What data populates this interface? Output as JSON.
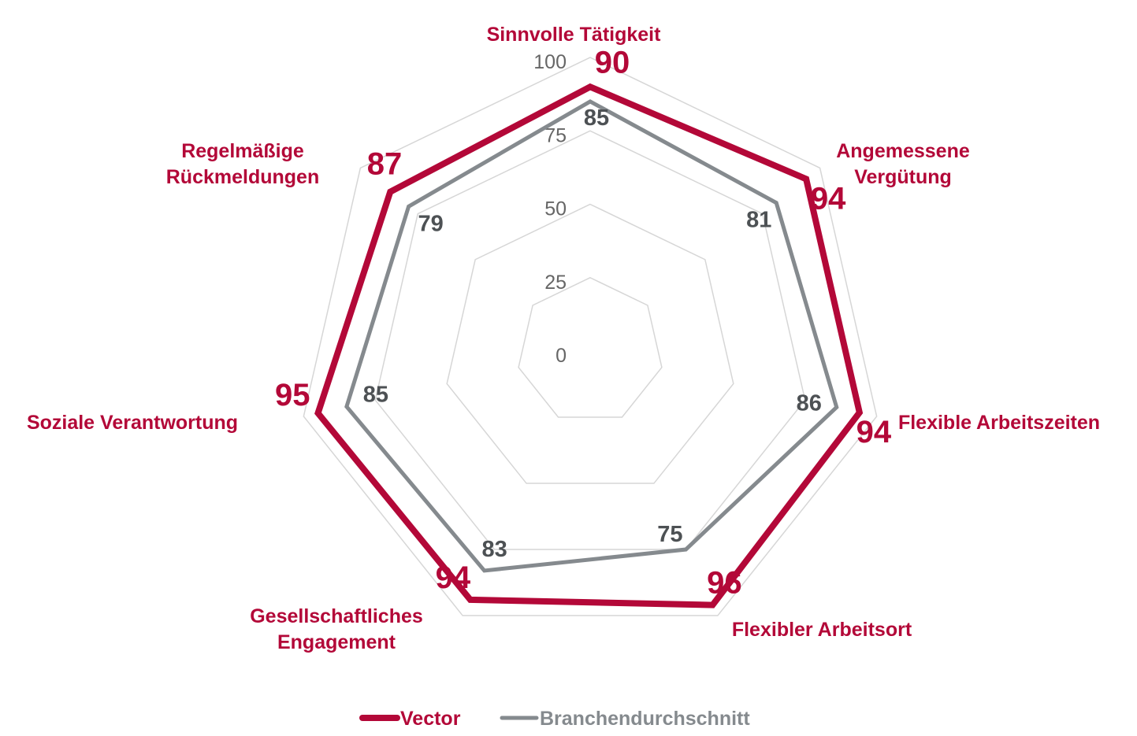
{
  "chart_data": {
    "type": "radar",
    "axes": [
      "Sinnvolle Tätigkeit",
      "Angemessene\nVergütung",
      "Flexible Arbeitszeiten",
      "Flexibler Arbeitsort",
      "Gesellschaftliches\nEngagement",
      "Soziale Verantwortung",
      "Regelmäßige\nRückmeldungen"
    ],
    "rlim": [
      0,
      100
    ],
    "ticks": [
      "0",
      "25",
      "50",
      "75",
      "100"
    ],
    "series": [
      {
        "name": "Vector",
        "color": "#b30838",
        "values": [
          90,
          94,
          94,
          96,
          94,
          95,
          87
        ]
      },
      {
        "name": "Branchendurchschnitt",
        "color": "#858a8e",
        "values": [
          85,
          81,
          86,
          75,
          83,
          85,
          79
        ]
      }
    ],
    "grid": true,
    "legend_position": "bottom-center"
  }
}
